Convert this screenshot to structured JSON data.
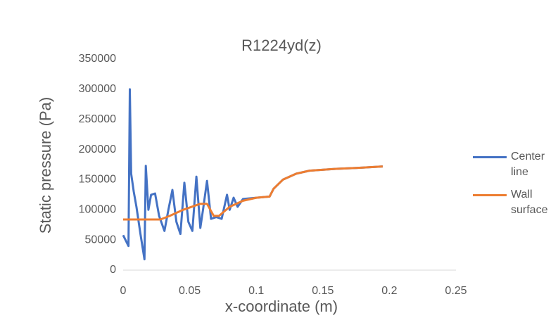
{
  "chart_data": {
    "type": "line",
    "title": "R1224yd(z)",
    "x_label": "x-coordinate (m)",
    "y_label": "Static pressure (Pa)",
    "xlim": [
      0,
      0.25
    ],
    "xticks": [
      0,
      0.05,
      0.1,
      0.15,
      0.2,
      0.25
    ],
    "ylim": [
      0,
      350000
    ],
    "yticks": [
      0,
      50000,
      100000,
      150000,
      200000,
      250000,
      300000,
      350000
    ],
    "grid": false,
    "legend": "right",
    "series": [
      {
        "name": "Center line",
        "color": "#4472c4",
        "x": [
          0,
          0.004,
          0.005,
          0.006,
          0.008,
          0.01,
          0.013,
          0.016,
          0.017,
          0.019,
          0.021,
          0.024,
          0.027,
          0.031,
          0.034,
          0.037,
          0.04,
          0.043,
          0.046,
          0.049,
          0.052,
          0.055,
          0.058,
          0.06,
          0.063,
          0.066,
          0.07,
          0.074,
          0.078,
          0.08,
          0.083,
          0.086,
          0.09,
          0.1,
          0.11,
          0.113,
          0.12,
          0.13,
          0.14,
          0.16,
          0.18,
          0.195
        ],
        "values": [
          58000,
          40000,
          300000,
          160000,
          130000,
          105000,
          60000,
          18000,
          173000,
          100000,
          125000,
          127000,
          90000,
          65000,
          100000,
          133000,
          80000,
          60000,
          145000,
          80000,
          65000,
          155000,
          70000,
          100000,
          148000,
          85000,
          88000,
          85000,
          125000,
          100000,
          120000,
          105000,
          118000,
          120000,
          122000,
          135000,
          150000,
          160000,
          165000,
          168000,
          170000,
          172000
        ]
      },
      {
        "name": "Wall surface",
        "color": "#ed7d31",
        "x": [
          0,
          0.015,
          0.028,
          0.035,
          0.045,
          0.058,
          0.063,
          0.068,
          0.072,
          0.08,
          0.09,
          0.1,
          0.11,
          0.113,
          0.12,
          0.13,
          0.14,
          0.16,
          0.18,
          0.195
        ],
        "values": [
          84000,
          84000,
          84000,
          90000,
          100000,
          110000,
          110000,
          90000,
          90000,
          105000,
          115000,
          120000,
          122000,
          135000,
          150000,
          160000,
          165000,
          168000,
          170000,
          172000
        ]
      }
    ]
  }
}
